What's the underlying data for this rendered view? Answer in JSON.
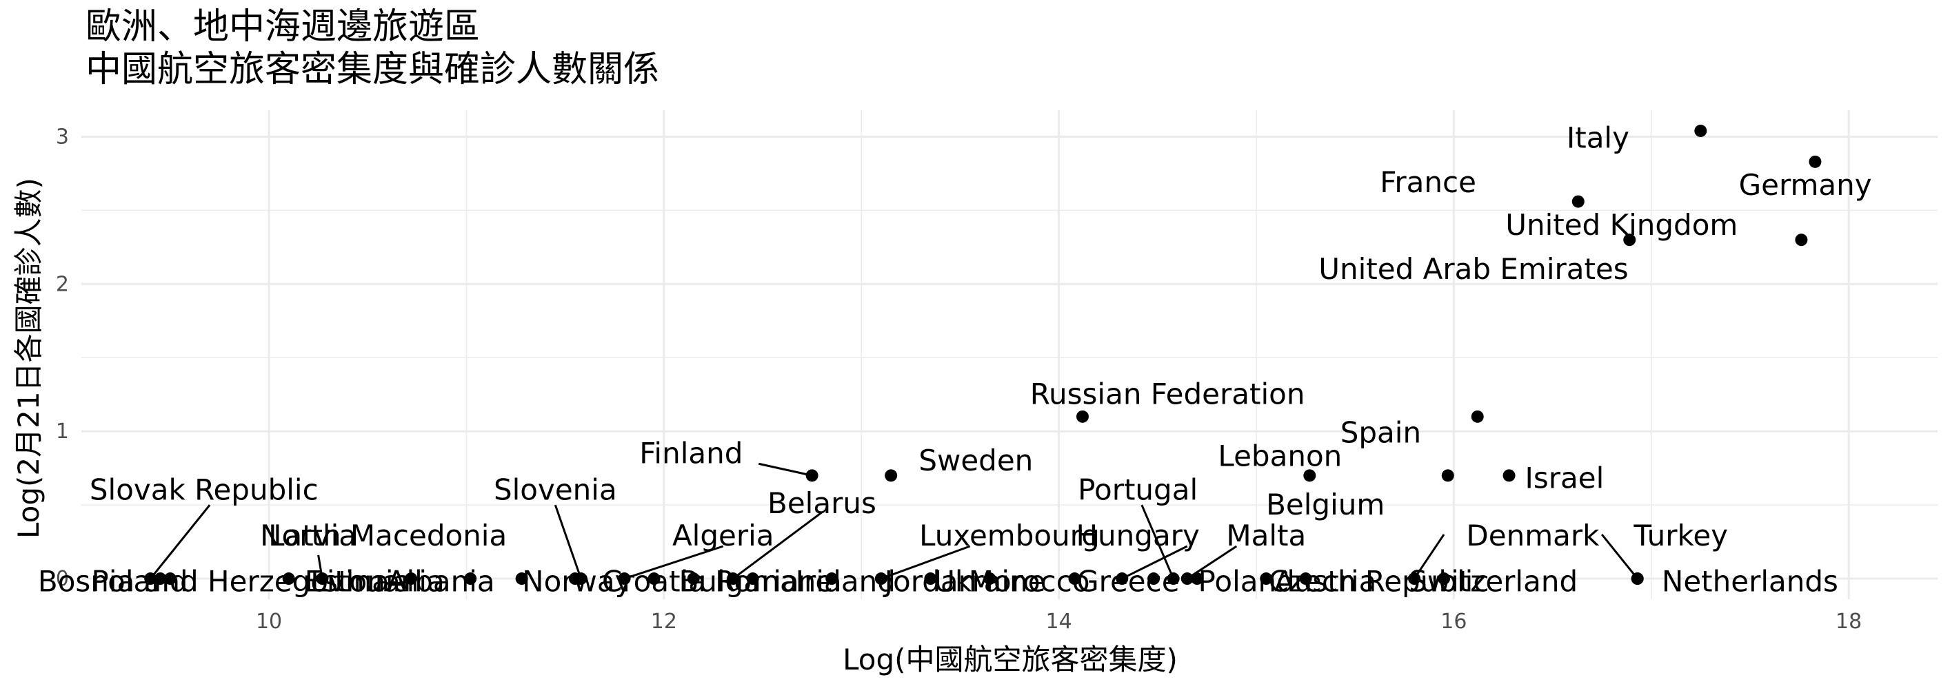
{
  "chart_data": {
    "type": "scatter",
    "title_lines": [
      "歐洲、地中海週邊旅遊區",
      "中國航空旅客密集度與確診人數關係"
    ],
    "xlabel": "Log(中國航空旅客密集度)",
    "ylabel": "Log(2月21日各國確診人數)",
    "xlim": [
      9.05,
      18.45
    ],
    "ylim": [
      -0.14,
      3.18
    ],
    "x_ticks": [
      10,
      12,
      14,
      16,
      18
    ],
    "y_ticks": [
      0,
      1,
      2,
      3
    ],
    "grid": true,
    "points": [
      {
        "label": "Italy",
        "x": 17.25,
        "y": 3.04,
        "label_x": 16.73,
        "label_y": 2.99,
        "anchor": "middle"
      },
      {
        "label": "Germany",
        "x": 17.83,
        "y": 2.83,
        "label_x": 17.78,
        "label_y": 2.67,
        "anchor": "middle"
      },
      {
        "label": "France",
        "x": 16.63,
        "y": 2.56,
        "label_x": 15.87,
        "label_y": 2.69,
        "anchor": "middle"
      },
      {
        "label": "United Kingdom",
        "x": 16.89,
        "y": 2.3,
        "label_x": 16.85,
        "label_y": 2.4,
        "anchor": "middle"
      },
      {
        "label": "United Arab Emirates",
        "x": 17.76,
        "y": 2.3,
        "label_x": 16.1,
        "label_y": 2.1,
        "anchor": "middle"
      },
      {
        "label": "Russian Federation",
        "x": 14.12,
        "y": 1.1,
        "label_x": 14.55,
        "label_y": 1.25,
        "anchor": "middle"
      },
      {
        "label": "Spain",
        "x": 16.12,
        "y": 1.1,
        "label_x": 15.63,
        "label_y": 0.99,
        "anchor": "middle"
      },
      {
        "label": "Lebanon",
        "x": 15.27,
        "y": 0.7,
        "label_x": 15.12,
        "label_y": 0.83,
        "anchor": "middle"
      },
      {
        "label": "Belgium",
        "x": 15.97,
        "y": 0.7,
        "label_x": 15.35,
        "label_y": 0.5,
        "anchor": "middle"
      },
      {
        "label": "Israel",
        "x": 16.28,
        "y": 0.7,
        "label_x": 16.36,
        "label_y": 0.68,
        "anchor": "start"
      },
      {
        "label": "Finland",
        "x": 12.75,
        "y": 0.7,
        "label_x": 12.4,
        "label_y": 0.85,
        "anchor": "end",
        "leader": [
          12.48,
          0.78
        ]
      },
      {
        "label": "Sweden",
        "x": 13.15,
        "y": 0.7,
        "label_x": 13.58,
        "label_y": 0.8,
        "anchor": "middle"
      },
      {
        "label": "Belarus",
        "x": 12.35,
        "y": 0.0,
        "label_x": 12.8,
        "label_y": 0.51,
        "anchor": "middle",
        "leader": [
          12.8,
          0.45
        ]
      },
      {
        "label": "Slovak Republic",
        "x": 9.4,
        "y": 0.0,
        "label_x": 10.25,
        "label_y": 0.6,
        "anchor": "end",
        "leader": [
          9.7,
          0.5
        ]
      },
      {
        "label": "Bosnia and Herzegovina",
        "x": 9.45,
        "y": 0.0,
        "label_x": 9.72,
        "label_y": -0.02,
        "anchor": "middle"
      },
      {
        "label": "Poland",
        "x": 9.5,
        "y": 0.0,
        "label_x": 9.1,
        "label_y": -0.02,
        "anchor": "start"
      },
      {
        "label": "Latvia",
        "x": 10.27,
        "y": 0.0,
        "label_x": 10.22,
        "label_y": 0.29,
        "anchor": "middle",
        "leader": [
          10.25,
          0.16
        ]
      },
      {
        "label": "Estonia",
        "x": 10.1,
        "y": 0.0,
        "label_x": 10.45,
        "label_y": -0.02,
        "anchor": "middle"
      },
      {
        "label": "Lithuania",
        "x": 10.72,
        "y": 0.0,
        "label_x": 10.55,
        "label_y": -0.02,
        "anchor": "middle"
      },
      {
        "label": "Albania",
        "x": 11.02,
        "y": 0.0,
        "label_x": 10.87,
        "label_y": -0.02,
        "anchor": "middle"
      },
      {
        "label": "North Macedonia",
        "x": 11.28,
        "y": 0.0,
        "label_x": 10.58,
        "label_y": 0.29,
        "anchor": "middle"
      },
      {
        "label": "Norway",
        "x": 11.55,
        "y": 0.0,
        "label_x": 11.56,
        "label_y": -0.02,
        "anchor": "middle"
      },
      {
        "label": "Slovenia",
        "x": 11.58,
        "y": 0.0,
        "label_x": 11.45,
        "label_y": 0.6,
        "anchor": "middle",
        "leader": [
          11.45,
          0.5
        ]
      },
      {
        "label": "Algeria",
        "x": 11.8,
        "y": 0.0,
        "label_x": 12.3,
        "label_y": 0.29,
        "anchor": "middle",
        "leader": [
          12.3,
          0.22
        ]
      },
      {
        "label": "Croatia",
        "x": 11.95,
        "y": 0.0,
        "label_x": 11.95,
        "label_y": -0.02,
        "anchor": "middle"
      },
      {
        "label": "Bulgaria",
        "x": 12.15,
        "y": 0.0,
        "label_x": 12.38,
        "label_y": -0.02,
        "anchor": "middle"
      },
      {
        "label": "Romania",
        "x": 12.45,
        "y": 0.0,
        "label_x": 12.58,
        "label_y": -0.02,
        "anchor": "middle"
      },
      {
        "label": "Ireland",
        "x": 12.85,
        "y": 0.0,
        "label_x": 12.92,
        "label_y": -0.02,
        "anchor": "middle"
      },
      {
        "label": "Luxembourg",
        "x": 13.1,
        "y": 0.0,
        "label_x": 13.75,
        "label_y": 0.29,
        "anchor": "middle",
        "leader": [
          13.55,
          0.22
        ]
      },
      {
        "label": "Jordan",
        "x": 13.35,
        "y": 0.0,
        "label_x": 13.35,
        "label_y": -0.02,
        "anchor": "middle"
      },
      {
        "label": "Ukraine",
        "x": 13.65,
        "y": 0.0,
        "label_x": 13.65,
        "label_y": -0.02,
        "anchor": "middle"
      },
      {
        "label": "Morocco",
        "x": 14.08,
        "y": 0.0,
        "label_x": 13.85,
        "label_y": -0.02,
        "anchor": "middle"
      },
      {
        "label": "Hungary",
        "x": 14.32,
        "y": 0.0,
        "label_x": 14.4,
        "label_y": 0.29,
        "anchor": "middle",
        "leader": [
          14.65,
          0.22
        ]
      },
      {
        "label": "Greece",
        "x": 14.48,
        "y": 0.0,
        "label_x": 14.35,
        "label_y": -0.02,
        "anchor": "middle"
      },
      {
        "label": "Portugal",
        "x": 14.58,
        "y": 0.0,
        "label_x": 14.4,
        "label_y": 0.6,
        "anchor": "middle",
        "leader": [
          14.42,
          0.5
        ]
      },
      {
        "label": "Malta",
        "x": 14.65,
        "y": 0.0,
        "label_x": 15.05,
        "label_y": 0.29,
        "anchor": "middle",
        "leader": [
          14.9,
          0.22
        ]
      },
      {
        "label": "Poland",
        "x": 14.7,
        "y": 0.0,
        "label_x": 14.95,
        "label_y": -0.02,
        "anchor": "middle"
      },
      {
        "label": "Austria",
        "x": 15.05,
        "y": 0.0,
        "label_x": 15.35,
        "label_y": -0.02,
        "anchor": "middle"
      },
      {
        "label": "Czech Republic",
        "x": 15.25,
        "y": 0.0,
        "label_x": 15.62,
        "label_y": -0.02,
        "anchor": "middle"
      },
      {
        "label": "Denmark",
        "x": 15.8,
        "y": 0.0,
        "label_x": 16.4,
        "label_y": 0.29,
        "anchor": "middle",
        "leader": [
          15.95,
          0.3
        ]
      },
      {
        "label": "Switzerland",
        "x": 15.95,
        "y": 0.0,
        "label_x": 16.2,
        "label_y": -0.02,
        "anchor": "middle"
      },
      {
        "label": "Turkey",
        "x": 16.93,
        "y": 0.0,
        "label_x": 17.15,
        "label_y": 0.29,
        "anchor": "middle",
        "leader": [
          16.75,
          0.3
        ]
      },
      {
        "label": "Netherlands",
        "x": 16.93,
        "y": 0.0,
        "label_x": 17.5,
        "label_y": -0.02,
        "anchor": "middle"
      }
    ]
  }
}
